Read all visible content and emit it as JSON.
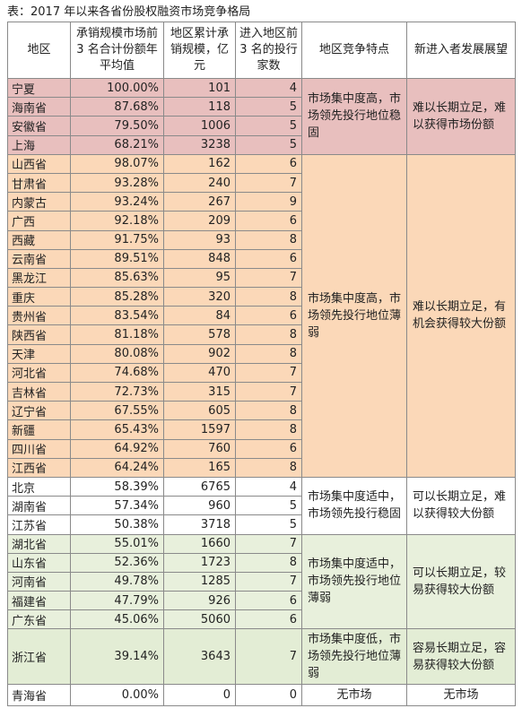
{
  "caption": "表：2017 年以来各省份股权融资市场竞争格局",
  "headers": [
    "地区",
    "承销规模市场前 3 名合计份额年平均值",
    "地区累计承销规模，亿元",
    "进入地区前 3 名的投行家数",
    "地区竞争特点",
    "新进入者发展展望"
  ],
  "groups": [
    {
      "feature": "市场集中度高，市场领先投行地位稳固",
      "outlook": "难以长期立足，难以获得市场份额"
    },
    {
      "feature": "市场集中度高，市场领先投行地位薄弱",
      "outlook": "难以长期立足，有机会获得较大份额"
    },
    {
      "feature": "市场集中度适中，市场领先投行稳固",
      "outlook": "可以长期立足，难以获得较大份额"
    },
    {
      "feature": "市场集中度适中，市场领先投行地位薄弱",
      "outlook": "可以长期立足，较易获得较大份额"
    },
    {
      "feature": "市场集中度低，市场领先投行地位薄弱",
      "outlook": "容易长期立足，容易获得较大份额"
    },
    {
      "feature": "无市场",
      "outlook": "无市场"
    }
  ],
  "rows": [
    {
      "region": "宁夏",
      "share": "100.00%",
      "scale": "101",
      "banks": "4"
    },
    {
      "region": "海南省",
      "share": "87.68%",
      "scale": "118",
      "banks": "5"
    },
    {
      "region": "安徽省",
      "share": "79.50%",
      "scale": "1006",
      "banks": "5"
    },
    {
      "region": "上海",
      "share": "68.21%",
      "scale": "3238",
      "banks": "5"
    },
    {
      "region": "山西省",
      "share": "98.07%",
      "scale": "162",
      "banks": "6"
    },
    {
      "region": "甘肃省",
      "share": "93.28%",
      "scale": "240",
      "banks": "7"
    },
    {
      "region": "内蒙古",
      "share": "93.24%",
      "scale": "267",
      "banks": "9"
    },
    {
      "region": "广西",
      "share": "92.18%",
      "scale": "209",
      "banks": "6"
    },
    {
      "region": "西藏",
      "share": "91.75%",
      "scale": "93",
      "banks": "8"
    },
    {
      "region": "云南省",
      "share": "89.51%",
      "scale": "848",
      "banks": "6"
    },
    {
      "region": "黑龙江",
      "share": "85.63%",
      "scale": "95",
      "banks": "7"
    },
    {
      "region": "重庆",
      "share": "85.28%",
      "scale": "320",
      "banks": "8"
    },
    {
      "region": "贵州省",
      "share": "83.54%",
      "scale": "84",
      "banks": "6"
    },
    {
      "region": "陕西省",
      "share": "81.18%",
      "scale": "578",
      "banks": "8"
    },
    {
      "region": "天津",
      "share": "80.08%",
      "scale": "902",
      "banks": "8"
    },
    {
      "region": "河北省",
      "share": "74.68%",
      "scale": "470",
      "banks": "7"
    },
    {
      "region": "吉林省",
      "share": "72.73%",
      "scale": "315",
      "banks": "7"
    },
    {
      "region": "辽宁省",
      "share": "67.55%",
      "scale": "605",
      "banks": "8"
    },
    {
      "region": "新疆",
      "share": "65.43%",
      "scale": "1597",
      "banks": "8"
    },
    {
      "region": "四川省",
      "share": "64.92%",
      "scale": "760",
      "banks": "6"
    },
    {
      "region": "江西省",
      "share": "64.24%",
      "scale": "165",
      "banks": "8"
    },
    {
      "region": "北京",
      "share": "58.39%",
      "scale": "6765",
      "banks": "4"
    },
    {
      "region": "湖南省",
      "share": "57.34%",
      "scale": "960",
      "banks": "5"
    },
    {
      "region": "江苏省",
      "share": "50.38%",
      "scale": "3718",
      "banks": "5"
    },
    {
      "region": "湖北省",
      "share": "55.01%",
      "scale": "1660",
      "banks": "7"
    },
    {
      "region": "山东省",
      "share": "52.36%",
      "scale": "1723",
      "banks": "8"
    },
    {
      "region": "河南省",
      "share": "49.78%",
      "scale": "1285",
      "banks": "7"
    },
    {
      "region": "福建省",
      "share": "47.79%",
      "scale": "926",
      "banks": "6"
    },
    {
      "region": "广东省",
      "share": "45.06%",
      "scale": "5060",
      "banks": "6"
    },
    {
      "region": "浙江省",
      "share": "39.14%",
      "scale": "3643",
      "banks": "7"
    },
    {
      "region": "青海省",
      "share": "0.00%",
      "scale": "0",
      "banks": "0"
    }
  ]
}
